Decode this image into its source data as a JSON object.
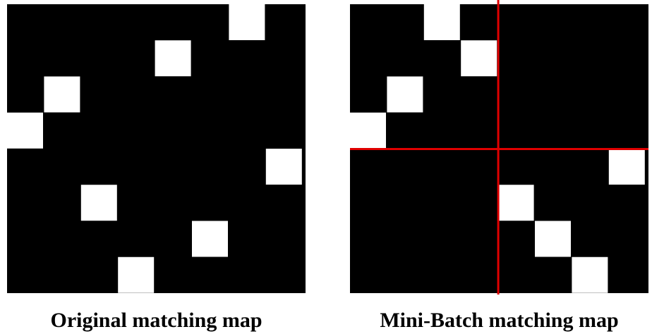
{
  "colors": {
    "background": "#000000",
    "match": "#ffffff",
    "divider": "#e00000"
  },
  "panels": [
    {
      "caption": "Original matching map",
      "grid": {
        "rows": 8,
        "cols": 8
      },
      "matches": [
        {
          "row": 0,
          "col": 6
        },
        {
          "row": 1,
          "col": 4
        },
        {
          "row": 2,
          "col": 1
        },
        {
          "row": 3,
          "col": 0
        },
        {
          "row": 4,
          "col": 7
        },
        {
          "row": 5,
          "col": 2
        },
        {
          "row": 6,
          "col": 5
        },
        {
          "row": 7,
          "col": 3
        }
      ],
      "divider": null
    },
    {
      "caption": "Mini-Batch matching map",
      "grid": {
        "rows": 8,
        "cols": 8
      },
      "matches": [
        {
          "row": 0,
          "col": 2
        },
        {
          "row": 1,
          "col": 3
        },
        {
          "row": 2,
          "col": 1
        },
        {
          "row": 3,
          "col": 0
        },
        {
          "row": 4,
          "col": 7
        },
        {
          "row": 5,
          "col": 4
        },
        {
          "row": 6,
          "col": 5
        },
        {
          "row": 7,
          "col": 6
        }
      ],
      "divider": {
        "row": 4,
        "col": 4
      }
    }
  ]
}
